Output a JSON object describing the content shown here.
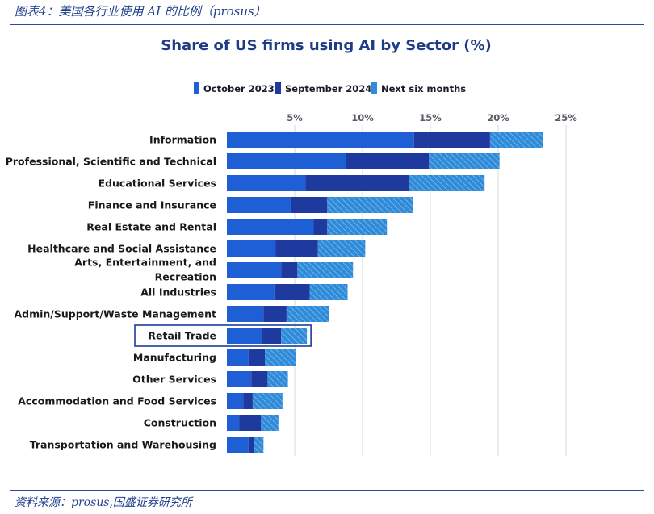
{
  "header": {
    "title": "图表4：美国各行业使用 AI 的比例（prosus）"
  },
  "footer": {
    "source": "资料来源：prosus,国盛证券研究所"
  },
  "colors": {
    "october_2023": "#1f5fd6",
    "september_2024": "#1e3a9e",
    "next_six_months": "#2f8ad8",
    "gridline": "#d9d9d9",
    "highlight_border": "#1e3a9e"
  },
  "chart_data": {
    "type": "bar",
    "orientation": "horizontal",
    "stacked": true,
    "title": "Share of US firms using AI by Sector (%)",
    "xlabel": "",
    "ylabel": "",
    "xlim": [
      0,
      25
    ],
    "xticks": [
      "5%",
      "10%",
      "15%",
      "20%",
      "25%"
    ],
    "xtick_values": [
      5,
      10,
      15,
      20,
      25
    ],
    "legend_position": "top-center",
    "highlighted_category": "Retail Trade",
    "categories": [
      "Information",
      "Professional, Scientific and Technical",
      "Educational Services",
      "Finance and Insurance",
      "Real Estate and Rental",
      "Healthcare and Social Assistance",
      "Arts, Entertainment, and Recreation",
      "All Industries",
      "Admin/Support/Waste Management",
      "Retail Trade",
      "Manufacturing",
      "Other Services",
      "Accommodation and Food Services",
      "Construction",
      "Transportation and Warehousing"
    ],
    "series": [
      {
        "name": "October 2023",
        "pattern": "solid",
        "values": [
          13.8,
          8.8,
          5.8,
          4.7,
          6.4,
          3.6,
          4.0,
          3.5,
          2.7,
          2.6,
          1.6,
          1.8,
          1.2,
          0.9,
          1.6
        ]
      },
      {
        "name": "September 2024",
        "pattern": "solid",
        "values": [
          5.6,
          6.1,
          7.6,
          2.7,
          1.0,
          3.1,
          1.2,
          2.6,
          1.7,
          1.4,
          1.2,
          1.2,
          0.7,
          1.6,
          0.4
        ]
      },
      {
        "name": "Next six months",
        "pattern": "hatched",
        "values": [
          3.9,
          5.2,
          5.6,
          6.3,
          4.4,
          3.5,
          4.1,
          2.8,
          3.1,
          1.9,
          2.3,
          1.5,
          2.2,
          1.3,
          0.7
        ]
      }
    ]
  }
}
